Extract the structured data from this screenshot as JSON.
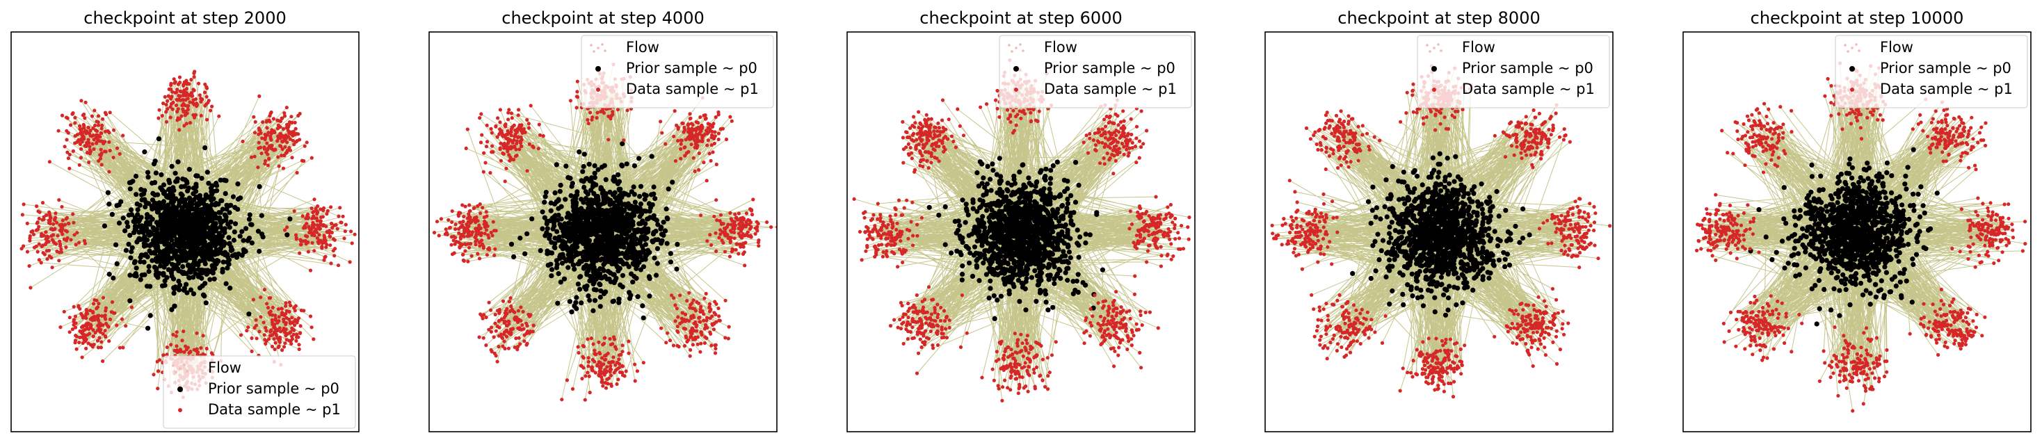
{
  "figure": {
    "background": "#ffffff",
    "colors": {
      "flow": "#808000",
      "flow_legend": "#f4b9b0",
      "prior": "#000000",
      "data": "#d62728",
      "frame": "#000000"
    }
  },
  "chart_data": [
    {
      "type": "scatter",
      "title": "checkpoint at step 2000",
      "step": 2000,
      "grid": false,
      "axes_visible": false,
      "legend_position": "lower right",
      "legend": [
        "Flow",
        "Prior sample ~ p0",
        "Data sample ~ p1"
      ],
      "series": [
        {
          "name": "Flow",
          "kind": "trajectories from prior to data",
          "color": "#808000"
        },
        {
          "name": "Prior sample ~ p0",
          "distribution": "2D standard normal",
          "center": [
            0,
            0
          ],
          "std": 1.0,
          "color": "#000000"
        },
        {
          "name": "Data sample ~ p1",
          "distribution": "8-gaussian ring",
          "ring_radius": 5.0,
          "cluster_std": 0.5,
          "cluster_centers": [
            [
              5,
              0
            ],
            [
              3.54,
              3.54
            ],
            [
              0,
              5
            ],
            [
              -3.54,
              3.54
            ],
            [
              -5,
              0
            ],
            [
              -3.54,
              -3.54
            ],
            [
              0,
              -5
            ],
            [
              3.54,
              -3.54
            ]
          ],
          "color": "#d62728"
        }
      ],
      "xlim": [
        -6.5,
        6.5
      ],
      "ylim": [
        -7.5,
        7.5
      ]
    },
    {
      "type": "scatter",
      "title": "checkpoint at step 4000",
      "step": 4000,
      "grid": false,
      "axes_visible": false,
      "legend_position": "upper right",
      "legend": [
        "Flow",
        "Prior sample ~ p0",
        "Data sample ~ p1"
      ],
      "series": [
        {
          "name": "Flow",
          "kind": "trajectories from prior to data",
          "color": "#808000"
        },
        {
          "name": "Prior sample ~ p0",
          "distribution": "2D standard normal",
          "center": [
            0,
            0
          ],
          "std": 1.0,
          "color": "#000000"
        },
        {
          "name": "Data sample ~ p1",
          "distribution": "8-gaussian ring",
          "ring_radius": 5.0,
          "cluster_std": 0.5,
          "cluster_centers": [
            [
              5,
              0
            ],
            [
              3.54,
              3.54
            ],
            [
              0,
              5
            ],
            [
              -3.54,
              3.54
            ],
            [
              -5,
              0
            ],
            [
              -3.54,
              -3.54
            ],
            [
              0,
              -5
            ],
            [
              3.54,
              -3.54
            ]
          ],
          "color": "#d62728"
        }
      ],
      "xlim": [
        -6.5,
        6.5
      ],
      "ylim": [
        -7.5,
        7.5
      ]
    },
    {
      "type": "scatter",
      "title": "checkpoint at step 6000",
      "step": 6000,
      "grid": false,
      "axes_visible": false,
      "legend_position": "upper right",
      "legend": [
        "Flow",
        "Prior sample ~ p0",
        "Data sample ~ p1"
      ],
      "series": [
        {
          "name": "Flow",
          "kind": "trajectories from prior to data",
          "color": "#808000"
        },
        {
          "name": "Prior sample ~ p0",
          "distribution": "2D standard normal",
          "center": [
            0,
            0
          ],
          "std": 1.0,
          "color": "#000000"
        },
        {
          "name": "Data sample ~ p1",
          "distribution": "8-gaussian ring",
          "ring_radius": 5.0,
          "cluster_std": 0.5,
          "cluster_centers": [
            [
              5,
              0
            ],
            [
              3.54,
              3.54
            ],
            [
              0,
              5
            ],
            [
              -3.54,
              3.54
            ],
            [
              -5,
              0
            ],
            [
              -3.54,
              -3.54
            ],
            [
              0,
              -5
            ],
            [
              3.54,
              -3.54
            ]
          ],
          "color": "#d62728"
        }
      ],
      "xlim": [
        -6.5,
        6.5
      ],
      "ylim": [
        -7.5,
        7.5
      ]
    },
    {
      "type": "scatter",
      "title": "checkpoint at step 8000",
      "step": 8000,
      "grid": false,
      "axes_visible": false,
      "legend_position": "upper right",
      "legend": [
        "Flow",
        "Prior sample ~ p0",
        "Data sample ~ p1"
      ],
      "series": [
        {
          "name": "Flow",
          "kind": "trajectories from prior to data",
          "color": "#808000"
        },
        {
          "name": "Prior sample ~ p0",
          "distribution": "2D standard normal",
          "center": [
            0,
            0
          ],
          "std": 1.0,
          "color": "#000000"
        },
        {
          "name": "Data sample ~ p1",
          "distribution": "8-gaussian ring",
          "ring_radius": 5.0,
          "cluster_std": 0.5,
          "cluster_centers": [
            [
              5,
              0
            ],
            [
              3.54,
              3.54
            ],
            [
              0,
              5
            ],
            [
              -3.54,
              3.54
            ],
            [
              -5,
              0
            ],
            [
              -3.54,
              -3.54
            ],
            [
              0,
              -5
            ],
            [
              3.54,
              -3.54
            ]
          ],
          "color": "#d62728"
        }
      ],
      "xlim": [
        -6.5,
        6.5
      ],
      "ylim": [
        -7.5,
        7.5
      ]
    },
    {
      "type": "scatter",
      "title": "checkpoint at step 10000",
      "step": 10000,
      "grid": false,
      "axes_visible": false,
      "legend_position": "upper right",
      "legend": [
        "Flow",
        "Prior sample ~ p0",
        "Data sample ~ p1"
      ],
      "series": [
        {
          "name": "Flow",
          "kind": "trajectories from prior to data",
          "color": "#808000"
        },
        {
          "name": "Prior sample ~ p0",
          "distribution": "2D standard normal",
          "center": [
            0,
            0
          ],
          "std": 1.0,
          "color": "#000000"
        },
        {
          "name": "Data sample ~ p1",
          "distribution": "8-gaussian ring",
          "ring_radius": 5.0,
          "cluster_std": 0.5,
          "cluster_centers": [
            [
              5,
              0
            ],
            [
              3.54,
              3.54
            ],
            [
              0,
              5
            ],
            [
              -3.54,
              3.54
            ],
            [
              -5,
              0
            ],
            [
              -3.54,
              -3.54
            ],
            [
              0,
              -5
            ],
            [
              3.54,
              -3.54
            ]
          ],
          "color": "#d62728"
        }
      ],
      "xlim": [
        -6.5,
        6.5
      ],
      "ylim": [
        -7.5,
        7.5
      ]
    }
  ]
}
